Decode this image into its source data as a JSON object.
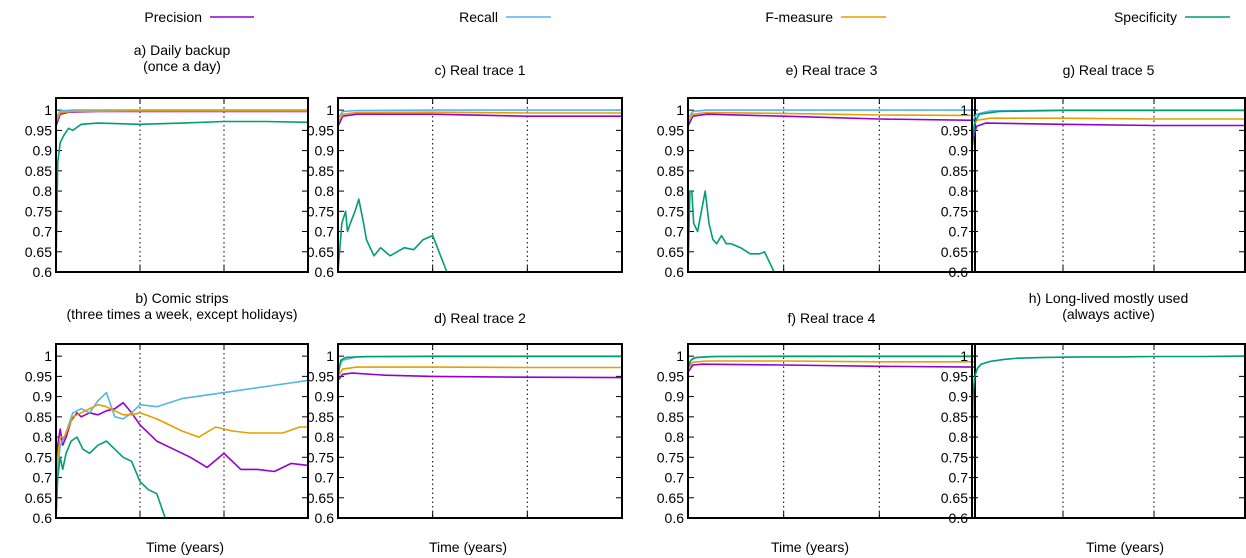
{
  "legend": [
    {
      "name": "Precision",
      "color": "#9400d3"
    },
    {
      "name": "Recall",
      "color": "#56b4e9"
    },
    {
      "name": "F-measure",
      "color": "#e69f00"
    },
    {
      "name": "Specificity",
      "color": "#009e73"
    }
  ],
  "xlabel": "Time (years)",
  "ytick_labels": [
    "1",
    "0.95",
    "0.9",
    "0.85",
    "0.8",
    "0.75",
    "0.7",
    "0.65",
    "0.6"
  ],
  "chart_data": [
    {
      "type": "line",
      "title": [
        "a) Daily backup",
        "(once a day)"
      ],
      "xlim": [
        0,
        3
      ],
      "ylim": [
        0.6,
        1.03
      ],
      "grid": "vertical dotted at x=1,2",
      "series": [
        {
          "name": "Precision",
          "x": [
            0,
            0.05,
            0.15,
            0.5,
            1,
            2,
            3
          ],
          "y": [
            0.96,
            0.99,
            0.995,
            0.997,
            0.997,
            0.997,
            0.997
          ]
        },
        {
          "name": "Recall",
          "x": [
            0,
            0.05,
            0.2,
            1,
            2,
            3
          ],
          "y": [
            0.98,
            0.998,
            1.0,
            1.0,
            1.0,
            1.0
          ]
        },
        {
          "name": "F-measure",
          "x": [
            0,
            0.05,
            0.2,
            1,
            2,
            3
          ],
          "y": [
            0.97,
            0.994,
            0.997,
            0.998,
            0.998,
            0.998
          ]
        },
        {
          "name": "Specificity",
          "x": [
            0,
            0.02,
            0.05,
            0.1,
            0.15,
            0.2,
            0.3,
            0.5,
            1,
            1.5,
            2,
            2.5,
            3
          ],
          "y": [
            0.6,
            0.87,
            0.92,
            0.94,
            0.955,
            0.95,
            0.965,
            0.968,
            0.965,
            0.968,
            0.972,
            0.972,
            0.97
          ]
        }
      ]
    },
    {
      "type": "line",
      "title": [
        "c) Real trace 1"
      ],
      "xlim": [
        0,
        3
      ],
      "ylim": [
        0.6,
        1.03
      ],
      "grid": "vertical dotted at x=1,2",
      "series": [
        {
          "name": "Precision",
          "x": [
            0,
            0.05,
            0.2,
            1,
            2,
            3
          ],
          "y": [
            0.96,
            0.985,
            0.99,
            0.99,
            0.985,
            0.985
          ]
        },
        {
          "name": "Recall",
          "x": [
            0,
            0.05,
            0.2,
            1,
            2,
            3
          ],
          "y": [
            0.98,
            0.997,
            0.999,
            1.0,
            1.0,
            1.0
          ]
        },
        {
          "name": "F-measure",
          "x": [
            0,
            0.05,
            0.2,
            1,
            2,
            3
          ],
          "y": [
            0.97,
            0.99,
            0.994,
            0.995,
            0.993,
            0.993
          ]
        },
        {
          "name": "Specificity",
          "x": [
            0,
            0.04,
            0.08,
            0.1,
            0.13,
            0.18,
            0.22,
            0.27,
            0.3,
            0.38,
            0.45,
            0.55,
            0.7,
            0.8,
            0.9,
            1.0,
            1.15
          ],
          "y": [
            0.6,
            0.72,
            0.75,
            0.7,
            0.72,
            0.75,
            0.78,
            0.72,
            0.68,
            0.64,
            0.66,
            0.64,
            0.66,
            0.655,
            0.68,
            0.69,
            0.6
          ]
        }
      ]
    },
    {
      "type": "line",
      "title": [
        "e) Real trace 3"
      ],
      "xlim": [
        0,
        3
      ],
      "ylim": [
        0.6,
        1.03
      ],
      "grid": "vertical dotted at x=1,2",
      "series": [
        {
          "name": "Precision",
          "x": [
            0,
            0.05,
            0.2,
            1,
            2,
            3
          ],
          "y": [
            0.96,
            0.985,
            0.99,
            0.985,
            0.978,
            0.975
          ]
        },
        {
          "name": "Recall",
          "x": [
            0,
            0.05,
            0.2,
            1,
            2,
            3
          ],
          "y": [
            0.98,
            0.997,
            1.0,
            1.0,
            1.0,
            1.0
          ]
        },
        {
          "name": "F-measure",
          "x": [
            0,
            0.05,
            0.2,
            1,
            2,
            3
          ],
          "y": [
            0.97,
            0.99,
            0.994,
            0.992,
            0.988,
            0.987
          ]
        },
        {
          "name": "Specificity",
          "x": [
            0,
            0.02,
            0.04,
            0.06,
            0.1,
            0.14,
            0.18,
            0.22,
            0.26,
            0.3,
            0.35,
            0.4,
            0.45,
            0.55,
            0.65,
            0.75,
            0.8,
            0.9
          ],
          "y": [
            0.6,
            0.8,
            0.8,
            0.72,
            0.7,
            0.75,
            0.8,
            0.72,
            0.68,
            0.67,
            0.69,
            0.67,
            0.67,
            0.66,
            0.645,
            0.645,
            0.65,
            0.6
          ]
        }
      ]
    },
    {
      "type": "line",
      "title": [
        "g) Real trace 5"
      ],
      "xlim": [
        0,
        3
      ],
      "ylim": [
        0.6,
        1.03
      ],
      "grid": "vertical dotted at x=1,2",
      "series": [
        {
          "name": "Precision",
          "x": [
            0,
            0.05,
            0.15,
            1,
            2,
            3
          ],
          "y": [
            0.92,
            0.96,
            0.968,
            0.965,
            0.962,
            0.962
          ]
        },
        {
          "name": "Recall",
          "x": [
            0,
            0.05,
            0.2,
            1,
            2,
            3
          ],
          "y": [
            0.97,
            0.99,
            0.998,
            1.0,
            1.0,
            1.0
          ]
        },
        {
          "name": "F-measure",
          "x": [
            0,
            0.05,
            0.2,
            1,
            2,
            3
          ],
          "y": [
            0.95,
            0.975,
            0.98,
            0.98,
            0.978,
            0.978
          ]
        },
        {
          "name": "Specificity",
          "x": [
            0,
            0.03,
            0.08,
            0.3,
            1,
            2,
            3
          ],
          "y": [
            0.9,
            0.97,
            0.99,
            0.997,
            0.999,
            0.999,
            0.999
          ]
        }
      ]
    },
    {
      "type": "line",
      "title": [
        "b) Comic strips",
        "(three times a week, except holidays)"
      ],
      "xlim": [
        0,
        3
      ],
      "ylim": [
        0.6,
        1.03
      ],
      "grid": "vertical dotted at x=1,2",
      "series": [
        {
          "name": "Precision",
          "x": [
            0,
            0.02,
            0.05,
            0.08,
            0.12,
            0.18,
            0.25,
            0.3,
            0.4,
            0.5,
            0.6,
            0.7,
            0.8,
            0.9,
            1.0,
            1.2,
            1.4,
            1.6,
            1.8,
            2.0,
            2.2,
            2.4,
            2.6,
            2.8,
            3.0
          ],
          "y": [
            0.6,
            0.78,
            0.82,
            0.78,
            0.8,
            0.84,
            0.86,
            0.85,
            0.86,
            0.855,
            0.865,
            0.87,
            0.885,
            0.86,
            0.83,
            0.79,
            0.77,
            0.75,
            0.725,
            0.76,
            0.72,
            0.72,
            0.715,
            0.735,
            0.73
          ]
        },
        {
          "name": "Recall",
          "x": [
            0,
            0.02,
            0.05,
            0.1,
            0.2,
            0.3,
            0.4,
            0.5,
            0.6,
            0.7,
            0.8,
            0.9,
            1.0,
            1.2,
            1.5,
            2.0,
            2.5,
            3.0
          ],
          "y": [
            0.6,
            0.72,
            0.78,
            0.8,
            0.86,
            0.87,
            0.86,
            0.89,
            0.91,
            0.85,
            0.845,
            0.86,
            0.88,
            0.875,
            0.895,
            0.91,
            0.925,
            0.94
          ]
        },
        {
          "name": "F-measure",
          "x": [
            0,
            0.02,
            0.05,
            0.1,
            0.2,
            0.3,
            0.4,
            0.5,
            0.6,
            0.7,
            0.8,
            0.9,
            1.0,
            1.2,
            1.5,
            1.7,
            1.9,
            2.1,
            2.3,
            2.5,
            2.7,
            2.9,
            3.0
          ],
          "y": [
            0.6,
            0.75,
            0.8,
            0.8,
            0.85,
            0.86,
            0.87,
            0.88,
            0.875,
            0.865,
            0.855,
            0.855,
            0.86,
            0.845,
            0.815,
            0.8,
            0.825,
            0.815,
            0.81,
            0.81,
            0.81,
            0.825,
            0.825
          ]
        },
        {
          "name": "Specificity",
          "x": [
            0,
            0.02,
            0.05,
            0.08,
            0.12,
            0.18,
            0.25,
            0.32,
            0.4,
            0.5,
            0.6,
            0.7,
            0.8,
            0.9,
            1.0,
            1.1,
            1.2,
            1.3
          ],
          "y": [
            0.6,
            0.7,
            0.75,
            0.72,
            0.76,
            0.79,
            0.8,
            0.77,
            0.76,
            0.78,
            0.79,
            0.77,
            0.75,
            0.74,
            0.69,
            0.67,
            0.66,
            0.6
          ]
        }
      ]
    },
    {
      "type": "line",
      "title": [
        "d) Real trace 2"
      ],
      "xlim": [
        0,
        3
      ],
      "ylim": [
        0.6,
        1.03
      ],
      "grid": "vertical dotted at x=1,2",
      "series": [
        {
          "name": "Precision",
          "x": [
            0,
            0.05,
            0.15,
            0.5,
            1,
            2,
            3
          ],
          "y": [
            0.94,
            0.955,
            0.958,
            0.953,
            0.95,
            0.948,
            0.947
          ]
        },
        {
          "name": "Recall",
          "x": [
            0,
            0.05,
            0.2,
            1,
            2,
            3
          ],
          "y": [
            0.97,
            0.99,
            0.998,
            1.0,
            1.0,
            1.0
          ]
        },
        {
          "name": "F-measure",
          "x": [
            0,
            0.05,
            0.2,
            1,
            2,
            3
          ],
          "y": [
            0.95,
            0.968,
            0.973,
            0.973,
            0.972,
            0.972
          ]
        },
        {
          "name": "Specificity",
          "x": [
            0,
            0.03,
            0.08,
            0.3,
            1,
            2,
            3
          ],
          "y": [
            0.95,
            0.99,
            0.997,
            0.999,
            0.999,
            0.999,
            0.999
          ]
        }
      ]
    },
    {
      "type": "line",
      "title": [
        "f) Real trace 4"
      ],
      "xlim": [
        0,
        3
      ],
      "ylim": [
        0.6,
        1.03
      ],
      "grid": "vertical dotted at x=1,2",
      "series": [
        {
          "name": "Precision",
          "x": [
            0,
            0.05,
            0.15,
            1,
            2,
            3
          ],
          "y": [
            0.96,
            0.978,
            0.98,
            0.978,
            0.975,
            0.973
          ]
        },
        {
          "name": "Recall",
          "x": [
            0,
            0.05,
            0.2,
            1,
            2,
            3
          ],
          "y": [
            0.98,
            0.995,
            0.999,
            1.0,
            1.0,
            1.0
          ]
        },
        {
          "name": "F-measure",
          "x": [
            0,
            0.05,
            0.2,
            1,
            2,
            3
          ],
          "y": [
            0.97,
            0.985,
            0.988,
            0.988,
            0.986,
            0.986
          ]
        },
        {
          "name": "Specificity",
          "x": [
            0,
            0.03,
            0.08,
            0.3,
            1,
            2,
            3
          ],
          "y": [
            0.97,
            0.99,
            0.997,
            0.999,
            0.999,
            0.999,
            0.999
          ]
        }
      ]
    },
    {
      "type": "line",
      "title": [
        "h) Long-lived mostly used",
        "(always active)"
      ],
      "xlim": [
        0,
        3
      ],
      "ylim": [
        0.6,
        1.03
      ],
      "grid": "vertical dotted at x=1,2",
      "series": [
        {
          "name": "Specificity",
          "x": [
            0,
            0.01,
            0.03,
            0.06,
            0.1,
            0.2,
            0.35,
            0.5,
            0.8,
            1.2,
            1.6,
            2.0,
            2.5,
            3.0
          ],
          "y": [
            0.78,
            0.9,
            0.95,
            0.97,
            0.98,
            0.987,
            0.992,
            0.995,
            0.997,
            0.998,
            0.998,
            0.999,
            0.999,
            1.0
          ]
        }
      ]
    }
  ]
}
